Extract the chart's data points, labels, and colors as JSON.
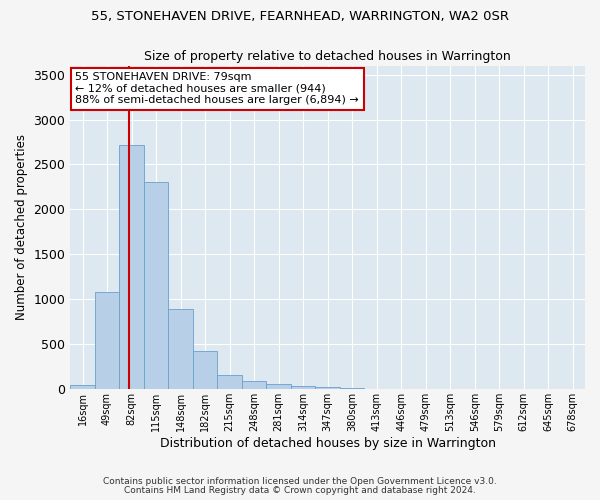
{
  "title": "55, STONEHAVEN DRIVE, FEARNHEAD, WARRINGTON, WA2 0SR",
  "subtitle": "Size of property relative to detached houses in Warrington",
  "xlabel": "Distribution of detached houses by size in Warrington",
  "ylabel": "Number of detached properties",
  "categories": [
    "16sqm",
    "49sqm",
    "82sqm",
    "115sqm",
    "148sqm",
    "182sqm",
    "215sqm",
    "248sqm",
    "281sqm",
    "314sqm",
    "347sqm",
    "380sqm",
    "413sqm",
    "446sqm",
    "479sqm",
    "513sqm",
    "546sqm",
    "579sqm",
    "612sqm",
    "645sqm",
    "678sqm"
  ],
  "values": [
    50,
    1080,
    2720,
    2310,
    890,
    430,
    160,
    90,
    55,
    40,
    25,
    15,
    8,
    4,
    2,
    1,
    1,
    0,
    0,
    0,
    0
  ],
  "bar_color": "#b8cfe8",
  "bar_edge_color": "#6aa0cc",
  "background_color": "#dde8f0",
  "grid_color": "#ffffff",
  "annotation_text": "55 STONEHAVEN DRIVE: 79sqm\n← 12% of detached houses are smaller (944)\n88% of semi-detached houses are larger (6,894) →",
  "annotation_box_color": "#ffffff",
  "annotation_box_edge": "#cc0000",
  "marker_line_color": "#cc0000",
  "ylim": [
    0,
    3600
  ],
  "yticks": [
    0,
    500,
    1000,
    1500,
    2000,
    2500,
    3000,
    3500
  ],
  "footer1": "Contains HM Land Registry data © Crown copyright and database right 2024.",
  "footer2": "Contains public sector information licensed under the Open Government Licence v3.0.",
  "fig_bg_color": "#f5f5f5"
}
